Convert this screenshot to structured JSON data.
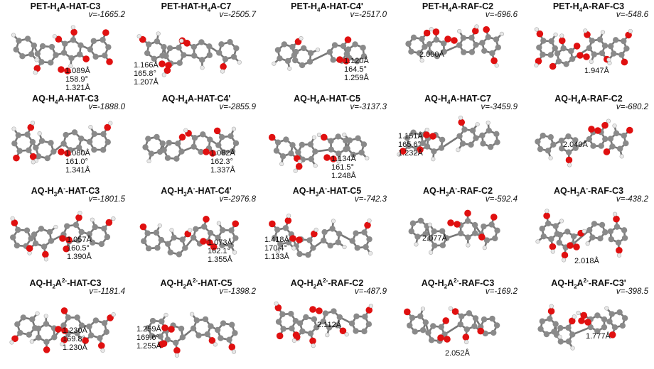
{
  "panels": [
    {
      "title_html": "PET-H<sub>4</sub>A-HAT-C3",
      "freq": "v=-1665.2",
      "geo": [
        "1.089Å",
        "158.9°",
        "1.321Å"
      ]
    },
    {
      "title_html": "PET-HAT-H<sub>4</sub>A-C7",
      "freq": "v=-2505.7",
      "geo": [
        "1.166Å",
        "165.8°",
        "1.207Å"
      ]
    },
    {
      "title_html": "PET-H<sub>4</sub>A-HAT-C4'",
      "freq": "v=-2517.0",
      "geo": [
        "1.120Å",
        "164.5°",
        "1.259Å"
      ]
    },
    {
      "title_html": "PET-H<sub>4</sub>A-RAF-C2",
      "freq": "v=-696.6",
      "geo": [
        "2.000Å"
      ]
    },
    {
      "title_html": "PET-H<sub>4</sub>A-RAF-C3",
      "freq": "v=-548.6",
      "geo": [
        "1.947Å"
      ]
    },
    {
      "title_html": "AQ-H<sub>4</sub>A-HAT-C3",
      "freq": "v=-1888.0",
      "geo": [
        "1.080Å",
        "161.0°",
        "1.341Å"
      ]
    },
    {
      "title_html": "AQ-H<sub>4</sub>A-HAT-C4'",
      "freq": "v=-2855.9",
      "geo": [
        "1.082Å",
        "162.3°",
        "1.337Å"
      ]
    },
    {
      "title_html": "AQ-H<sub>4</sub>A-HAT-C5",
      "freq": "v=-3137.3",
      "geo": [
        "1.134Å",
        "161.5°",
        "1.248Å"
      ]
    },
    {
      "title_html": "AQ-H<sub>4</sub>A-HAT-C7",
      "freq": "v=-3459.9",
      "geo": [
        "1.151Å",
        "165.6°",
        "1.232Å"
      ]
    },
    {
      "title_html": "AQ-H<sub>4</sub>A-RAF-C2",
      "freq": "v=-680.2",
      "geo": [
        "2.040Å"
      ]
    },
    {
      "title_html": "AQ-H<sub>3</sub>A<sup>-</sup>-HAT-C3",
      "freq": "v=-1801.5",
      "geo": [
        "1.057Å",
        "160.5°",
        "1.390Å"
      ]
    },
    {
      "title_html": "AQ-H<sub>3</sub>A<sup>-</sup>-HAT-C4'",
      "freq": "v=-2976.8",
      "geo": [
        "1.073Å",
        "162.1°",
        "1.355Å"
      ]
    },
    {
      "title_html": "AQ-H<sub>3</sub>A<sup>-</sup>-HAT-C5",
      "freq": "v=-742.3",
      "geo": [
        "1.418Å",
        "170.4°",
        "1.133Å"
      ]
    },
    {
      "title_html": "AQ-H<sub>3</sub>A<sup>-</sup>-RAF-C2",
      "freq": "v=-592.4",
      "geo": [
        "2.077Å"
      ]
    },
    {
      "title_html": "AQ-H<sub>3</sub>A<sup>-</sup>-RAF-C3",
      "freq": "v=-438.2",
      "geo": [
        "2.018Å"
      ]
    },
    {
      "title_html": "AQ-H<sub>2</sub>A<sup>2-</sup>-HAT-C3",
      "freq": "v=-1181.4",
      "geo": [
        "1.230Å",
        "169.8°",
        "1.230Å"
      ]
    },
    {
      "title_html": "AQ-H<sub>2</sub>A<sup>2-</sup>-HAT-C5",
      "freq": "v=-1398.2",
      "geo": [
        "1.259Å",
        "169.6°",
        "1.255Å"
      ]
    },
    {
      "title_html": "AQ-H<sub>2</sub>A<sup>2-</sup>-RAF-C2",
      "freq": "v=-487.9",
      "geo": [
        "2.112Å"
      ]
    },
    {
      "title_html": "AQ-H<sub>2</sub>A<sup>2-</sup>-RAF-C3",
      "freq": "v=-169.2",
      "geo": [
        "2.052Å"
      ]
    },
    {
      "title_html": "AQ-H<sub>2</sub>A<sup>2-</sup>-RAF-C3'",
      "freq": "v=-398.5",
      "geo": [
        "1.777Å"
      ]
    }
  ],
  "colors": {
    "carbon": "#8a8a8a",
    "oxygen": "#e01010",
    "hydrogen": "#e8e8e8",
    "bond": "#777777"
  }
}
